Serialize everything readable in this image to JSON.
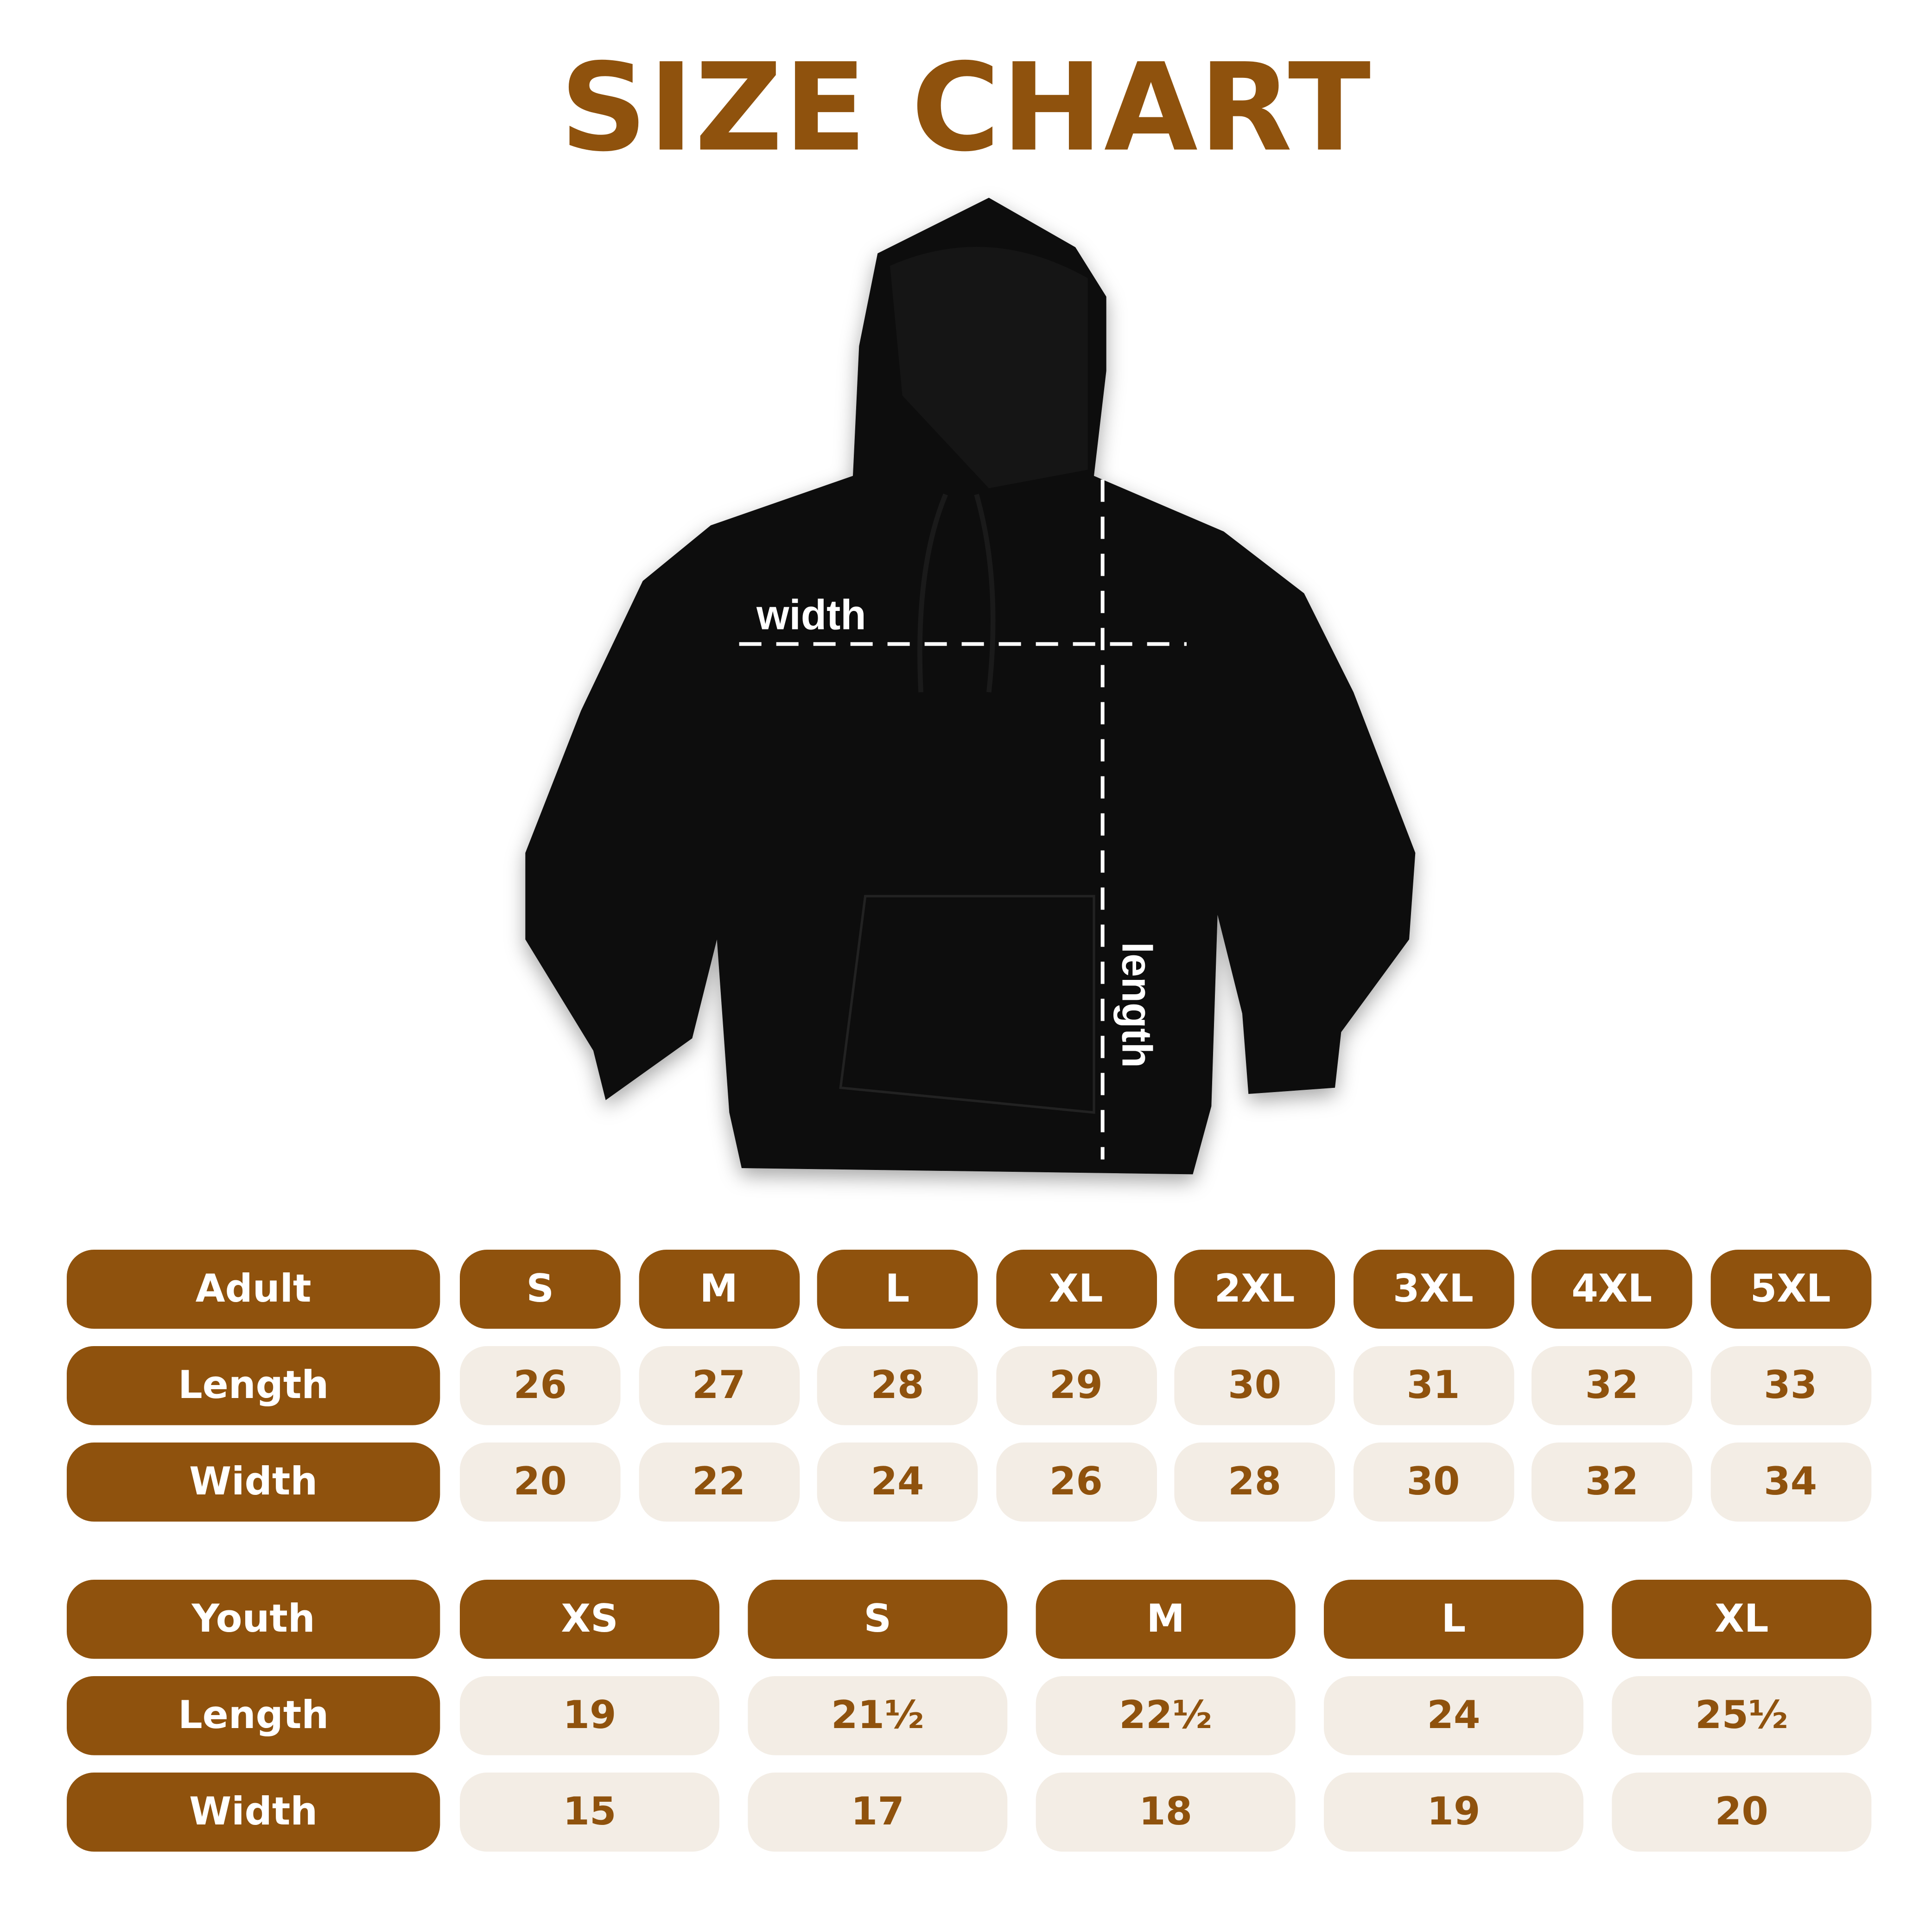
{
  "title": "SIZE CHART",
  "image": {
    "label_width": "width",
    "label_length": "length",
    "garment_color": "#000000"
  },
  "colors": {
    "brand": "#8f520d",
    "cell_bg": "#f3ede5",
    "background": "#ffffff"
  },
  "adult": {
    "header": "Adult",
    "sizes": [
      "S",
      "M",
      "L",
      "XL",
      "2XL",
      "3XL",
      "4XL",
      "5XL"
    ],
    "rows": [
      {
        "label": "Length",
        "values": [
          "26",
          "27",
          "28",
          "29",
          "30",
          "31",
          "32",
          "33"
        ]
      },
      {
        "label": "Width",
        "values": [
          "20",
          "22",
          "24",
          "26",
          "28",
          "30",
          "32",
          "34"
        ]
      }
    ]
  },
  "youth": {
    "header": "Youth",
    "sizes": [
      "XS",
      "S",
      "M",
      "L",
      "XL"
    ],
    "rows": [
      {
        "label": "Length",
        "values": [
          "19",
          "21½",
          "22½",
          "24",
          "25½"
        ]
      },
      {
        "label": "Width",
        "values": [
          "15",
          "17",
          "18",
          "19",
          "20"
        ]
      }
    ]
  }
}
